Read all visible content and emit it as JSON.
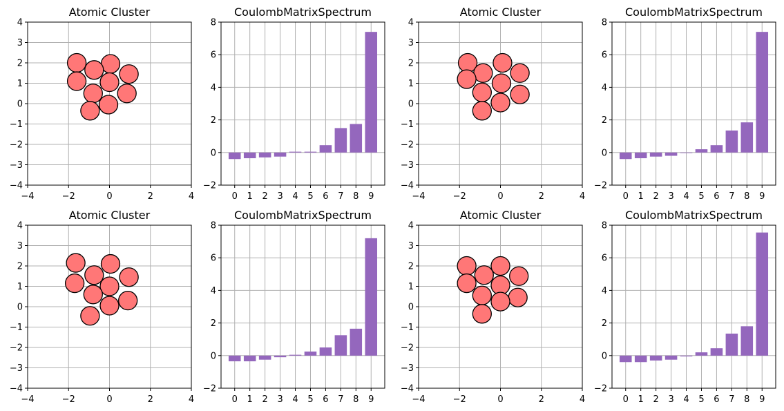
{
  "figure": {
    "background": "#ffffff",
    "grid_color": "#b0b0b0",
    "atom_color": "#ff7777",
    "atom_edge_color": "#000000",
    "bar_color": "#9467bd"
  },
  "chart_data": [
    {
      "type": "scatter",
      "title": "Atomic Cluster",
      "xlim": [
        -4,
        4
      ],
      "ylim": [
        -4,
        4
      ],
      "xticks": [
        "−4",
        "−2",
        "0",
        "2",
        "4"
      ],
      "yticks": [
        "−4",
        "−3",
        "−2",
        "−1",
        "0",
        "1",
        "2",
        "3",
        "4"
      ],
      "grid": true,
      "x": [
        -1.6,
        0.05,
        -0.75,
        0.95,
        -1.6,
        0.0,
        -0.8,
        0.85,
        -0.95,
        -0.05
      ],
      "y": [
        2.0,
        1.95,
        1.65,
        1.45,
        1.1,
        1.05,
        0.5,
        0.5,
        -0.35,
        -0.05
      ]
    },
    {
      "type": "bar",
      "title": "CoulombMatrixSpectrum",
      "categories": [
        "0",
        "1",
        "2",
        "3",
        "4",
        "5",
        "6",
        "7",
        "8",
        "9"
      ],
      "values": [
        -0.4,
        -0.35,
        -0.3,
        -0.25,
        0.05,
        0.05,
        0.45,
        1.5,
        1.75,
        7.4
      ],
      "ylim": [
        -2,
        8
      ],
      "yticks": [
        "−2",
        "0",
        "2",
        "4",
        "6",
        "8"
      ],
      "grid": true
    },
    {
      "type": "scatter",
      "title": "Atomic Cluster",
      "xlim": [
        -4,
        4
      ],
      "ylim": [
        -4,
        4
      ],
      "xticks": [
        "−4",
        "−2",
        "0",
        "2",
        "4"
      ],
      "yticks": [
        "−4",
        "−3",
        "−2",
        "−1",
        "0",
        "1",
        "2",
        "3",
        "4"
      ],
      "grid": true,
      "x": [
        -1.6,
        0.1,
        -0.85,
        0.95,
        -1.65,
        0.05,
        -0.9,
        0.95,
        -0.9,
        0.0
      ],
      "y": [
        2.0,
        2.0,
        1.5,
        1.5,
        1.2,
        1.0,
        0.55,
        0.45,
        -0.35,
        0.05
      ]
    },
    {
      "type": "bar",
      "title": "CoulombMatrixSpectrum",
      "categories": [
        "0",
        "1",
        "2",
        "3",
        "4",
        "5",
        "6",
        "7",
        "8",
        "9"
      ],
      "values": [
        -0.4,
        -0.35,
        -0.25,
        -0.2,
        0.0,
        0.2,
        0.45,
        1.35,
        1.85,
        7.4
      ],
      "ylim": [
        -2,
        8
      ],
      "yticks": [
        "−2",
        "0",
        "2",
        "4",
        "6",
        "8"
      ],
      "grid": true
    },
    {
      "type": "scatter",
      "title": "Atomic Cluster",
      "xlim": [
        -4,
        4
      ],
      "ylim": [
        -4,
        4
      ],
      "xticks": [
        "−4",
        "−2",
        "0",
        "2",
        "4"
      ],
      "yticks": [
        "−4",
        "−3",
        "−2",
        "−1",
        "0",
        "1",
        "2",
        "3",
        "4"
      ],
      "grid": true,
      "x": [
        -1.65,
        0.05,
        -0.75,
        0.95,
        -1.7,
        0.0,
        -0.8,
        0.9,
        -0.95,
        0.0
      ],
      "y": [
        2.15,
        2.1,
        1.55,
        1.45,
        1.15,
        1.0,
        0.6,
        0.3,
        -0.45,
        0.05
      ]
    },
    {
      "type": "bar",
      "title": "CoulombMatrixSpectrum",
      "categories": [
        "0",
        "1",
        "2",
        "3",
        "4",
        "5",
        "6",
        "7",
        "8",
        "9"
      ],
      "values": [
        -0.35,
        -0.35,
        -0.25,
        -0.1,
        0.05,
        0.25,
        0.5,
        1.25,
        1.65,
        7.2
      ],
      "ylim": [
        -2,
        8
      ],
      "yticks": [
        "−2",
        "0",
        "2",
        "4",
        "6",
        "8"
      ],
      "grid": true
    },
    {
      "type": "scatter",
      "title": "Atomic Cluster",
      "xlim": [
        -4,
        4
      ],
      "ylim": [
        -4,
        4
      ],
      "xticks": [
        "−4",
        "−2",
        "0",
        "2",
        "4"
      ],
      "yticks": [
        "−4",
        "−3",
        "−2",
        "−1",
        "0",
        "1",
        "2",
        "3",
        "4"
      ],
      "grid": true,
      "x": [
        -1.65,
        0.0,
        -0.8,
        0.9,
        -1.65,
        0.0,
        -0.9,
        0.85,
        -0.9,
        0.0
      ],
      "y": [
        2.0,
        2.0,
        1.55,
        1.5,
        1.15,
        1.05,
        0.55,
        0.45,
        -0.35,
        0.25
      ]
    },
    {
      "type": "bar",
      "title": "CoulombMatrixSpectrum",
      "categories": [
        "0",
        "1",
        "2",
        "3",
        "4",
        "5",
        "6",
        "7",
        "8",
        "9"
      ],
      "values": [
        -0.4,
        -0.4,
        -0.3,
        -0.25,
        -0.05,
        0.2,
        0.45,
        1.35,
        1.8,
        7.55
      ],
      "ylim": [
        -2,
        8
      ],
      "yticks": [
        "−2",
        "0",
        "2",
        "4",
        "6",
        "8"
      ],
      "grid": true
    }
  ]
}
